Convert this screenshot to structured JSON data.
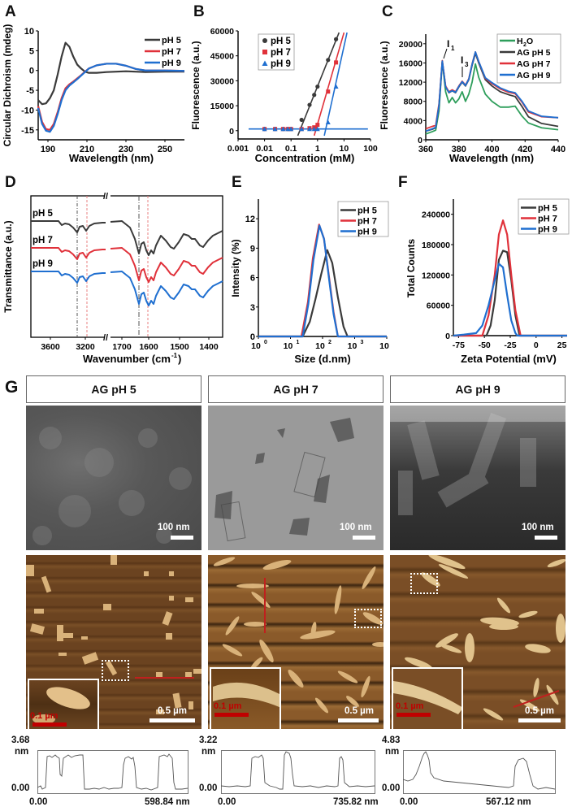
{
  "chart_data": [
    {
      "panel": "A",
      "type": "line",
      "xlabel": "Wavelength (nm)",
      "ylabel": "Circular Dichroism (mdeg)",
      "xlim": [
        185,
        260
      ],
      "ylim": [
        -17.5,
        10
      ],
      "xticks": [
        190,
        210,
        230,
        250
      ],
      "yticks": [
        10,
        5,
        0,
        -5,
        -10,
        -15
      ],
      "legend": [
        "pH 5",
        "pH 7",
        "pH 9"
      ],
      "series": [
        {
          "name": "pH 5",
          "color": "#3a3a3a",
          "x": [
            185,
            187,
            189,
            191,
            193,
            195,
            197,
            199,
            201,
            203,
            205,
            207,
            209,
            211,
            215,
            220,
            225,
            230,
            235,
            240,
            250,
            260
          ],
          "y": [
            -7.5,
            -8.5,
            -8.3,
            -7,
            -5,
            -1,
            3.5,
            7,
            6,
            3.5,
            1.5,
            0.5,
            -0.3,
            -0.6,
            -0.6,
            -0.4,
            -0.3,
            -0.2,
            -0.3,
            -0.4,
            -0.3,
            -0.3
          ]
        },
        {
          "name": "pH 7",
          "color": "#e0313a",
          "x": [
            185,
            187,
            189,
            191,
            193,
            195,
            197,
            199,
            201,
            203,
            205,
            207,
            209,
            211,
            215,
            220,
            225,
            230,
            235,
            240,
            250,
            260
          ],
          "y": [
            -9,
            -13,
            -14.8,
            -15,
            -13.5,
            -10.5,
            -7,
            -4.5,
            -3.5,
            -2.8,
            -2,
            -1.2,
            -0.3,
            0.5,
            1.3,
            1.7,
            1.7,
            1.2,
            0.4,
            0,
            0,
            -0.1
          ]
        },
        {
          "name": "pH 9",
          "color": "#1f6fd0",
          "x": [
            185,
            187,
            189,
            191,
            193,
            195,
            197,
            199,
            201,
            203,
            205,
            207,
            209,
            211,
            215,
            220,
            225,
            230,
            235,
            240,
            250,
            260
          ],
          "y": [
            -9.5,
            -13.5,
            -15.2,
            -15.5,
            -14,
            -11,
            -7.5,
            -5,
            -3.8,
            -3,
            -2.2,
            -1.3,
            -0.4,
            0.5,
            1.3,
            1.7,
            1.7,
            1.2,
            0.4,
            0,
            0,
            -0.1
          ]
        }
      ]
    },
    {
      "panel": "B",
      "type": "scatter",
      "xscale": "log",
      "xlabel": "Concentration (mM)",
      "ylabel": "Fluorescence (a.u.)",
      "xlim": [
        0.001,
        100
      ],
      "ylim": [
        -5000,
        60000
      ],
      "xticks": [
        "0.001",
        "0.01",
        "0.1",
        "1",
        "10",
        "100"
      ],
      "yticks": [
        60000,
        45000,
        30000,
        15000,
        0
      ],
      "legend": [
        "pH 5",
        "pH 7",
        "pH 9"
      ],
      "baseline": {
        "color": "#1f6fd0",
        "x": [
          0.0025,
          80
        ],
        "y": [
          1000,
          1000
        ]
      },
      "series": [
        {
          "name": "pH 5",
          "marker": "circle",
          "color": "#3a3a3a",
          "x": [
            0.01,
            0.025,
            0.05,
            0.075,
            0.1,
            0.25,
            0.5,
            0.75,
            1,
            2.5,
            5
          ],
          "y": [
            1000,
            1000,
            1000,
            1000,
            1000,
            6500,
            15500,
            21500,
            26500,
            42500,
            55000
          ],
          "fit": {
            "x": [
              0.18,
              6.5
            ],
            "y": [
              -3000,
              59000
            ]
          }
        },
        {
          "name": "pH 7",
          "marker": "square",
          "color": "#e0313a",
          "x": [
            0.01,
            0.025,
            0.05,
            0.075,
            0.1,
            0.25,
            0.5,
            0.75,
            1,
            2.5,
            5
          ],
          "y": [
            1000,
            1000,
            1000,
            1000,
            1000,
            1000,
            1500,
            2000,
            3500,
            23500,
            41000
          ],
          "fit": {
            "x": [
              0.75,
              10
            ],
            "y": [
              -3000,
              59000
            ]
          }
        },
        {
          "name": "pH 9",
          "marker": "triangle",
          "color": "#1f6fd0",
          "x": [
            0.01,
            0.025,
            0.05,
            0.075,
            0.1,
            0.25,
            0.5,
            0.75,
            1,
            2.5,
            5
          ],
          "y": [
            1000,
            1000,
            1000,
            1000,
            1000,
            1000,
            1000,
            1000,
            1000,
            5000,
            26500
          ],
          "fit": {
            "x": [
              1.8,
              13
            ],
            "y": [
              -3000,
              59000
            ]
          }
        }
      ]
    },
    {
      "panel": "C",
      "type": "line",
      "xlabel": "Wavelength (nm)",
      "ylabel": "Fluorescence (a.u.)",
      "xlim": [
        360,
        440
      ],
      "ylim": [
        0,
        22000
      ],
      "xticks": [
        360,
        380,
        400,
        420,
        440
      ],
      "yticks": [
        0,
        4000,
        8000,
        12000,
        16000,
        20000
      ],
      "annotations": [
        {
          "text": "I1",
          "x": 371,
          "y": 16500
        },
        {
          "text": "I3",
          "x": 382,
          "y": 12200
        }
      ],
      "legend": [
        "H2O",
        "AG pH 5",
        "AG pH 7",
        "AG pH 9"
      ],
      "series": [
        {
          "name": "H2O",
          "color": "#2e9e5b",
          "x": [
            360,
            364,
            366,
            368,
            370,
            372,
            374,
            376,
            378,
            380,
            382,
            384,
            386,
            388,
            390,
            392,
            396,
            400,
            405,
            410,
            414,
            418,
            422,
            430,
            440
          ],
          "y": [
            1200,
            1700,
            2000,
            6000,
            16300,
            10000,
            7700,
            8800,
            7700,
            8500,
            10000,
            8000,
            9500,
            12000,
            15800,
            13000,
            9500,
            8000,
            6800,
            6800,
            7000,
            5000,
            3500,
            2500,
            2100
          ]
        },
        {
          "name": "AG pH 5",
          "color": "#3a3a3a",
          "x": [
            360,
            364,
            366,
            368,
            370,
            372,
            374,
            376,
            378,
            380,
            382,
            384,
            386,
            388,
            390,
            392,
            396,
            400,
            405,
            410,
            414,
            418,
            422,
            430,
            440
          ],
          "y": [
            1800,
            2200,
            2500,
            7000,
            16300,
            11000,
            9800,
            10200,
            9800,
            11000,
            12000,
            11200,
            12500,
            15500,
            18000,
            16000,
            12500,
            11200,
            10000,
            9400,
            9000,
            7000,
            4800,
            3400,
            2800
          ]
        },
        {
          "name": "AG pH 7",
          "color": "#e0313a",
          "x": [
            360,
            364,
            366,
            368,
            370,
            372,
            374,
            376,
            378,
            380,
            382,
            384,
            386,
            388,
            390,
            392,
            396,
            400,
            405,
            410,
            414,
            418,
            422,
            430,
            440
          ],
          "y": [
            2300,
            2800,
            3000,
            7500,
            16500,
            11200,
            10000,
            10400,
            10000,
            11200,
            12200,
            11400,
            12700,
            15800,
            18300,
            16300,
            12800,
            11700,
            10600,
            9900,
            9600,
            7900,
            5800,
            4800,
            4600
          ]
        },
        {
          "name": "AG pH 9",
          "color": "#1f6fd0",
          "x": [
            360,
            364,
            366,
            368,
            370,
            372,
            374,
            376,
            378,
            380,
            382,
            384,
            386,
            388,
            390,
            392,
            396,
            400,
            405,
            410,
            414,
            418,
            422,
            430,
            440
          ],
          "y": [
            1800,
            2300,
            2600,
            7200,
            16400,
            11000,
            9900,
            10200,
            9900,
            11100,
            12100,
            11300,
            12600,
            15700,
            18300,
            16300,
            12900,
            11900,
            10800,
            10100,
            9800,
            8100,
            6000,
            4900,
            4600
          ]
        }
      ]
    },
    {
      "panel": "D",
      "type": "line",
      "xlabel": "Wavenumber (cm-1)",
      "ylabel": "Transmittance (a.u.)",
      "axis_break": true,
      "xticks": [
        3600,
        3200,
        1700,
        1600,
        1500,
        1400
      ],
      "yticks": [],
      "reference_lines": [
        {
          "x": 3280,
          "color": "#555555",
          "style": "dash-dot"
        },
        {
          "x": 3190,
          "color": "#e88080",
          "style": "dash"
        },
        {
          "x": 1650,
          "color": "#555555",
          "style": "dash-dot"
        },
        {
          "x": 1617,
          "color": "#e88080",
          "style": "dash"
        }
      ],
      "series_labels": [
        "pH 5",
        "pH 7",
        "pH 9"
      ],
      "series": [
        {
          "name": "pH 5",
          "color": "#3a3a3a",
          "offset": 2
        },
        {
          "name": "pH 7",
          "color": "#e0313a",
          "offset": 1
        },
        {
          "name": "pH 9",
          "color": "#1f6fd0",
          "offset": 0
        }
      ]
    },
    {
      "panel": "E",
      "type": "line",
      "xscale": "log",
      "xlabel": "Size (d.nm)",
      "ylabel": "Intensity (%)",
      "xlim": [
        1,
        10000
      ],
      "ylim": [
        0,
        14
      ],
      "xticks": [
        "10^0",
        "10^1",
        "10^2",
        "10^3",
        "10^4"
      ],
      "yticks": [
        0,
        3,
        6,
        9,
        12
      ],
      "legend": [
        "pH 5",
        "pH 7",
        "pH 9"
      ],
      "series": [
        {
          "name": "pH 5",
          "color": "#3a3a3a",
          "x": [
            1,
            24,
            40,
            60,
            90,
            140,
            200,
            300,
            450,
            600,
            10000
          ],
          "y": [
            0,
            0,
            1.5,
            3.8,
            6.3,
            8.8,
            7.5,
            4,
            1,
            0,
            0
          ]
        },
        {
          "name": "pH 7",
          "color": "#e0313a",
          "x": [
            1,
            22,
            35,
            50,
            78,
            110,
            160,
            220,
            300,
            10000
          ],
          "y": [
            0,
            0,
            3.5,
            8,
            11.4,
            10,
            6,
            2.5,
            0,
            0
          ]
        },
        {
          "name": "pH 9",
          "color": "#1f6fd0",
          "x": [
            1,
            24,
            36,
            52,
            80,
            112,
            160,
            220,
            300,
            10000
          ],
          "y": [
            0,
            0,
            3.3,
            7.8,
            11.3,
            9.9,
            5.8,
            2.3,
            0,
            0
          ]
        }
      ]
    },
    {
      "panel": "F",
      "type": "line",
      "xlabel": "Zeta Potential (mV)",
      "ylabel": "Total Counts",
      "xlim": [
        -80,
        30
      ],
      "ylim": [
        0,
        270000
      ],
      "xticks": [
        -75,
        -50,
        -25,
        0,
        25
      ],
      "yticks": [
        0,
        60000,
        120000,
        180000,
        240000
      ],
      "legend": [
        "pH 5",
        "pH 7",
        "pH 9"
      ],
      "series": [
        {
          "name": "pH 5",
          "color": "#3a3a3a",
          "x": [
            -80,
            -48,
            -44,
            -40,
            -36,
            -32,
            -28,
            -24,
            -20,
            -16,
            30
          ],
          "y": [
            0,
            0,
            20000,
            70000,
            150000,
            168000,
            165000,
            110000,
            40000,
            0,
            0
          ]
        },
        {
          "name": "pH 7",
          "color": "#e0313a",
          "x": [
            -80,
            -52,
            -46,
            -40,
            -36,
            -32,
            -28,
            -24,
            -20,
            -15,
            30
          ],
          "y": [
            0,
            0,
            40000,
            120000,
            200000,
            228000,
            200000,
            120000,
            50000,
            0,
            0
          ]
        },
        {
          "name": "pH 9",
          "color": "#1f6fd0",
          "x": [
            -80,
            -70,
            -58,
            -52,
            -46,
            -40,
            -36,
            -32,
            -28,
            -24,
            -20,
            -18,
            30
          ],
          "y": [
            0,
            2000,
            5000,
            20000,
            60000,
            110000,
            142000,
            135000,
            80000,
            30000,
            5000,
            0,
            0
          ]
        }
      ]
    }
  ],
  "panels": {
    "A": {
      "letter": "A"
    },
    "B": {
      "letter": "B"
    },
    "C": {
      "letter": "C"
    },
    "D": {
      "letter": "D"
    },
    "E": {
      "letter": "E"
    },
    "F": {
      "letter": "F"
    },
    "G": {
      "letter": "G"
    }
  },
  "panel_g": {
    "columns": [
      {
        "title": "AG pH 5",
        "tem_scale": "100 nm",
        "afm_scale": "0.5 µm",
        "inset_scale": "0.1 µm",
        "profile": {
          "ymax": "3.68",
          "yunit": "nm",
          "ymin": "0.00",
          "xmin": "0.00",
          "xmax": "598.84 nm"
        }
      },
      {
        "title": "AG pH 7",
        "tem_scale": "100 nm",
        "afm_scale": "0.5 µm",
        "inset_scale": "0.1 µm",
        "profile": {
          "ymax": "3.22",
          "yunit": "nm",
          "ymin": "0.00",
          "xmin": "0.00",
          "xmax": "735.82 nm"
        }
      },
      {
        "title": "AG pH 9",
        "tem_scale": "100 nm",
        "afm_scale": "0.5 µm",
        "inset_scale": "0.1 µm",
        "profile": {
          "ymax": "4.83",
          "yunit": "nm",
          "ymin": "0.00",
          "xmin": "0.00",
          "xmax": "567.12 nm"
        }
      }
    ]
  },
  "colors": {
    "ph5": "#3a3a3a",
    "ph7": "#e0313a",
    "ph9": "#1f6fd0",
    "h2o": "#2e9e5b",
    "afm_bg": "#6b4320",
    "afm_particle": "#d9b27a"
  }
}
